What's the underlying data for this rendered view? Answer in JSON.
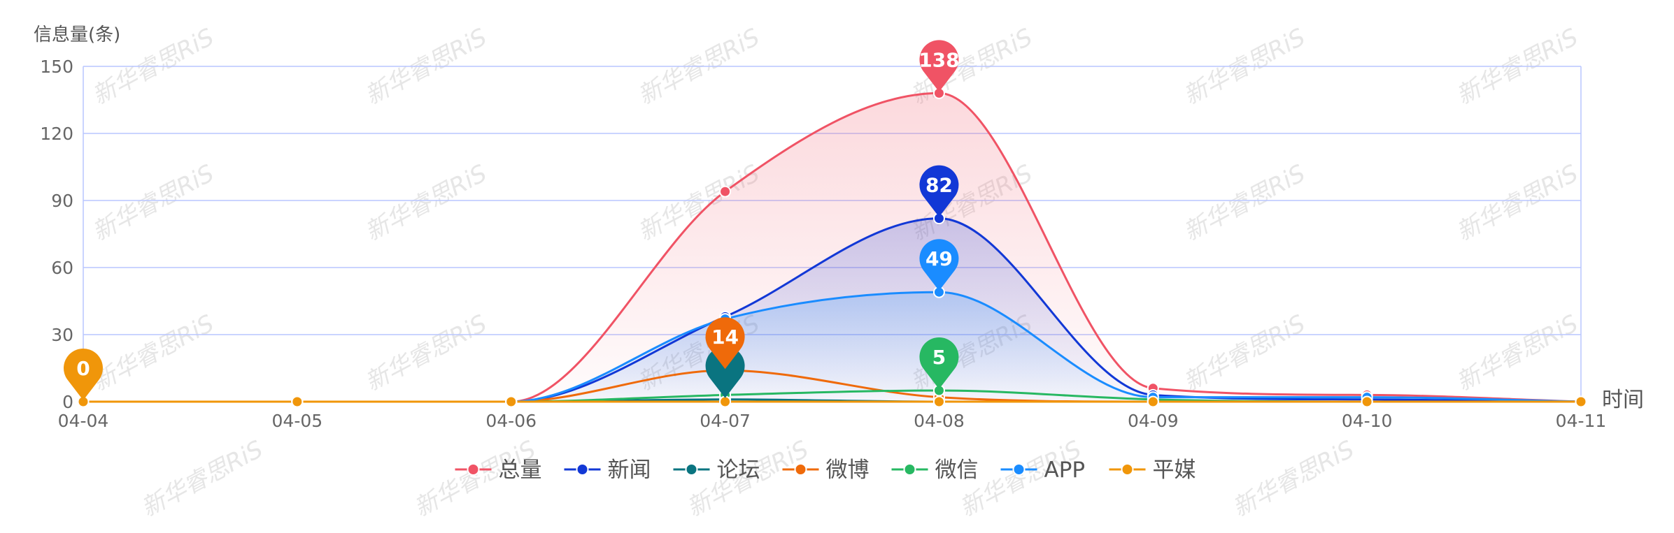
{
  "chart_data": {
    "type": "line",
    "ylabel": "信息量(条)",
    "xlabel": "时间",
    "categories": [
      "04-04",
      "04-05",
      "04-06",
      "04-07",
      "04-08",
      "04-09",
      "04-10",
      "04-11"
    ],
    "ylim": [
      0,
      150
    ],
    "yticks": [
      0,
      30,
      60,
      90,
      120,
      150
    ],
    "grid": true,
    "legend_position": "bottom",
    "watermark_text": "新华睿思RiS",
    "series": [
      {
        "name": "总量",
        "color": "#f05365",
        "values": [
          0,
          0,
          0,
          94,
          138,
          6,
          3,
          0
        ],
        "area": true,
        "max_label": "138"
      },
      {
        "name": "新闻",
        "color": "#1238d6",
        "values": [
          0,
          0,
          0,
          38,
          82,
          3,
          1,
          0
        ],
        "area": true,
        "max_label": "82"
      },
      {
        "name": "论坛",
        "color": "#0a7480",
        "values": [
          0,
          0,
          0,
          1,
          0,
          0,
          0,
          0
        ],
        "area": false,
        "max_label": ""
      },
      {
        "name": "微博",
        "color": "#ef6a0a",
        "values": [
          0,
          0,
          0,
          14,
          2,
          0,
          0,
          0
        ],
        "area": false,
        "max_label": "14"
      },
      {
        "name": "微信",
        "color": "#27b862",
        "values": [
          0,
          0,
          0,
          3,
          5,
          1,
          0,
          0
        ],
        "area": false,
        "max_label": "5"
      },
      {
        "name": "APP",
        "color": "#1a8cff",
        "values": [
          0,
          0,
          0,
          37,
          49,
          2,
          2,
          0
        ],
        "area": true,
        "max_label": "49"
      },
      {
        "name": "平媒",
        "color": "#f0960a",
        "values": [
          0,
          0,
          0,
          0,
          0,
          0,
          0,
          0
        ],
        "area": false,
        "max_label": "0"
      }
    ]
  }
}
